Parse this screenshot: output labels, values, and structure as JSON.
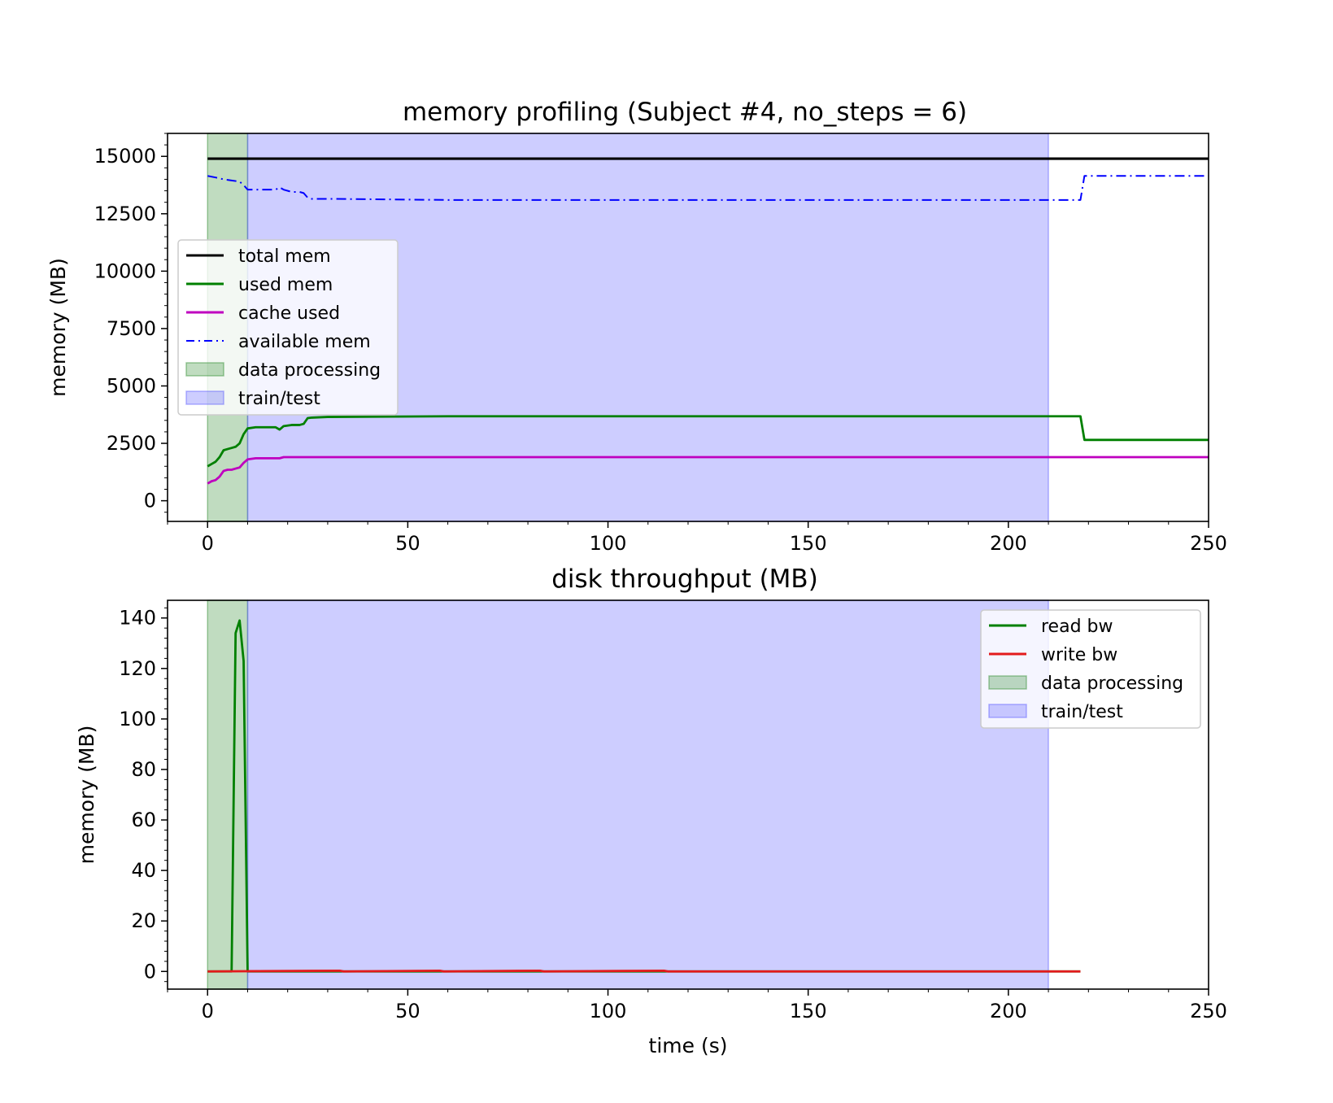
{
  "chart_data": [
    {
      "type": "line",
      "title": "memory profiling (Subject #4, no_steps = 6)",
      "xlabel": "",
      "ylabel": "memory (MB)",
      "xlim": [
        -10,
        250
      ],
      "ylim": [
        -900,
        16000
      ],
      "xticks": [
        0,
        50,
        100,
        150,
        200,
        250
      ],
      "xtick_labels": [
        "0",
        "50",
        "100",
        "150",
        "200",
        "250"
      ],
      "yticks": [
        0,
        2500,
        5000,
        7500,
        10000,
        12500,
        15000
      ],
      "ytick_labels": [
        "0",
        "2500",
        "5000",
        "7500",
        "10000",
        "12500",
        "15000"
      ],
      "grid": false,
      "legend_position": "center-left",
      "spans": [
        {
          "name": "data processing",
          "x0": 0,
          "x1": 10,
          "color": "#2e8b2e"
        },
        {
          "name": "train/test",
          "x0": 10,
          "x1": 210,
          "color": "#5b5bff"
        }
      ],
      "series": [
        {
          "name": "total mem",
          "color": "#000000",
          "style": "solid",
          "x": [
            0,
            250
          ],
          "y": [
            14900,
            14900
          ]
        },
        {
          "name": "used mem",
          "color": "#008000",
          "style": "solid",
          "x": [
            0,
            1,
            2,
            3,
            4,
            5,
            6,
            7,
            8,
            9,
            10,
            12,
            15,
            17,
            18,
            19,
            21,
            23,
            24,
            25,
            26,
            30,
            60,
            218,
            219,
            250
          ],
          "y": [
            1500,
            1600,
            1700,
            1900,
            2200,
            2250,
            2300,
            2350,
            2500,
            2900,
            3150,
            3200,
            3200,
            3200,
            3100,
            3250,
            3300,
            3300,
            3350,
            3600,
            3620,
            3650,
            3680,
            3680,
            2650,
            2650
          ]
        },
        {
          "name": "cache used",
          "color": "#bf00bf",
          "style": "solid",
          "x": [
            0,
            1,
            2,
            3,
            4,
            5,
            6,
            7,
            8,
            9,
            10,
            12,
            18,
            19,
            25,
            250
          ],
          "y": [
            750,
            850,
            900,
            1050,
            1300,
            1350,
            1350,
            1400,
            1450,
            1650,
            1800,
            1850,
            1850,
            1900,
            1900,
            1900
          ]
        },
        {
          "name": "available mem",
          "color": "#0000ff",
          "style": "dashdot",
          "x": [
            0,
            2,
            4,
            6,
            8,
            9,
            10,
            12,
            15,
            17,
            18,
            19,
            21,
            23,
            24,
            25,
            26,
            30,
            60,
            218,
            219,
            250
          ],
          "y": [
            14150,
            14080,
            14000,
            13950,
            13900,
            13750,
            13550,
            13550,
            13550,
            13550,
            13650,
            13550,
            13450,
            13450,
            13400,
            13200,
            13150,
            13150,
            13100,
            13100,
            14150,
            14150
          ]
        }
      ]
    },
    {
      "type": "line",
      "title": "disk throughput (MB)",
      "xlabel": "time (s)",
      "ylabel": "memory (MB)",
      "xlim": [
        -10,
        250
      ],
      "ylim": [
        -7,
        147
      ],
      "xticks": [
        0,
        50,
        100,
        150,
        200,
        250
      ],
      "xtick_labels": [
        "0",
        "50",
        "100",
        "150",
        "200",
        "250"
      ],
      "yticks": [
        0,
        20,
        40,
        60,
        80,
        100,
        120,
        140
      ],
      "ytick_labels": [
        "0",
        "20",
        "40",
        "60",
        "80",
        "100",
        "120",
        "140"
      ],
      "grid": false,
      "legend_position": "top-right",
      "spans": [
        {
          "name": "data processing",
          "x0": 0,
          "x1": 10,
          "color": "#2e8b2e"
        },
        {
          "name": "train/test",
          "x0": 10,
          "x1": 210,
          "color": "#5b5bff"
        }
      ],
      "series": [
        {
          "name": "read bw",
          "color": "#008000",
          "style": "solid",
          "x": [
            0,
            6,
            7,
            8,
            9,
            10,
            218
          ],
          "y": [
            0,
            0,
            134,
            139,
            123,
            0,
            0
          ]
        },
        {
          "name": "write bw",
          "color": "#e31a1c",
          "style": "solid",
          "x": [
            0,
            33,
            34,
            58,
            59,
            83,
            84,
            114,
            115,
            218
          ],
          "y": [
            0,
            0.3,
            0,
            0.3,
            0,
            0.3,
            0,
            0.3,
            0,
            0
          ]
        }
      ]
    }
  ]
}
